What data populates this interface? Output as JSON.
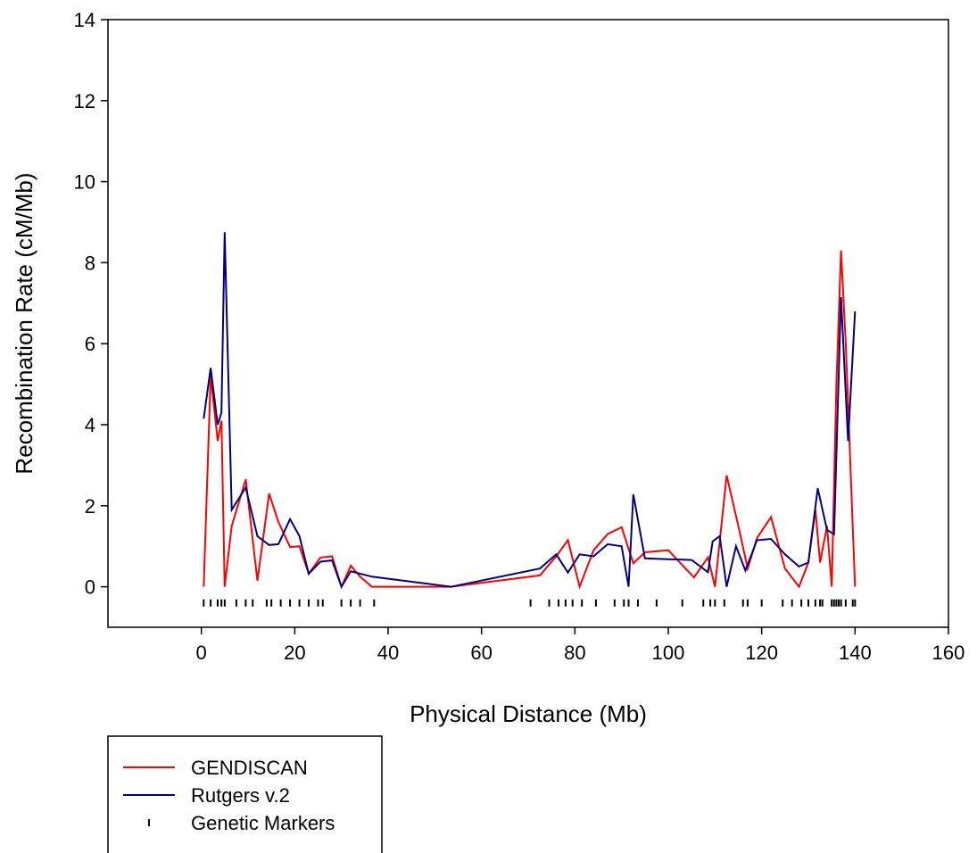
{
  "chart_data": {
    "type": "line",
    "title": "",
    "xlabel": "Physical Distance (Mb)",
    "ylabel": "Recombination Rate (cM/Mb)",
    "xlim": [
      -20,
      160
    ],
    "ylim": [
      -1,
      14
    ],
    "xticks": [
      0,
      20,
      40,
      60,
      80,
      100,
      120,
      140,
      160
    ],
    "yticks": [
      0,
      2,
      4,
      6,
      8,
      10,
      12,
      14
    ],
    "grid": false,
    "legend_position": "bottom-left",
    "series": [
      {
        "name": "GENDISCAN",
        "color": "#ff0000",
        "x": [
          0.5,
          2.0,
          3.5,
          4.3,
          5.0,
          6.5,
          9.5,
          12.0,
          14.5,
          16.5,
          19.0,
          21.0,
          23.0,
          25.5,
          28.0,
          30.0,
          32.0,
          34.0,
          36.5,
          53.5,
          72.5,
          76.0,
          78.5,
          81.0,
          84.0,
          87.0,
          90.0,
          92.5,
          95.0,
          100.0,
          105.5,
          108.5,
          110.0,
          112.5,
          115.0,
          117.0,
          119.0,
          122.0,
          125.0,
          128.0,
          130.0,
          131.5,
          132.5,
          134.0,
          135.0,
          136.0,
          137.0,
          138.0,
          140.0
        ],
        "values": [
          0.0,
          5.2,
          3.6,
          4.1,
          0.0,
          1.5,
          2.65,
          0.15,
          2.3,
          1.6,
          0.98,
          1.0,
          0.32,
          0.72,
          0.75,
          0.0,
          0.52,
          0.25,
          0.0,
          0.0,
          0.28,
          0.75,
          1.15,
          0.0,
          0.9,
          1.3,
          1.47,
          0.58,
          0.85,
          0.9,
          0.23,
          0.73,
          0.0,
          2.75,
          1.5,
          0.45,
          1.2,
          1.72,
          0.45,
          0.0,
          0.6,
          1.9,
          0.6,
          1.5,
          0.0,
          5.0,
          8.3,
          6.0,
          0.0
        ]
      },
      {
        "name": "Rutgers v.2",
        "color": "#000080",
        "x": [
          0.5,
          2.0,
          3.5,
          4.3,
          5.0,
          6.5,
          9.5,
          12.0,
          14.5,
          16.5,
          19.0,
          21.0,
          23.0,
          25.5,
          28.0,
          30.0,
          32.0,
          36.5,
          53.5,
          72.5,
          76.0,
          78.5,
          81.0,
          84.0,
          87.0,
          90.0,
          91.5,
          92.5,
          95.0,
          100.0,
          105.0,
          108.5,
          109.5,
          111.0,
          112.5,
          114.5,
          116.5,
          119.0,
          122.0,
          125.0,
          128.0,
          130.0,
          132.0,
          134.0,
          135.5,
          137.0,
          138.5,
          140.0
        ],
        "values": [
          4.15,
          5.4,
          4.0,
          4.3,
          8.75,
          1.9,
          2.45,
          1.25,
          1.03,
          1.05,
          1.67,
          1.25,
          0.32,
          0.62,
          0.65,
          0.0,
          0.38,
          0.25,
          0.0,
          0.45,
          0.8,
          0.35,
          0.8,
          0.75,
          1.05,
          1.0,
          0.0,
          2.28,
          0.7,
          0.68,
          0.66,
          0.36,
          1.12,
          1.25,
          0.0,
          1.0,
          0.4,
          1.15,
          1.18,
          0.8,
          0.5,
          0.6,
          2.43,
          1.4,
          1.3,
          7.15,
          3.6,
          6.8
        ]
      },
      {
        "name": "Genetic Markers",
        "color": "#000000",
        "marker_y": -0.4,
        "x": [
          0.5,
          2.0,
          3.5,
          4.3,
          5.0,
          7.5,
          9.5,
          11.0,
          14.0,
          15.0,
          17.0,
          19.0,
          21.0,
          23.0,
          25.0,
          26.0,
          30.0,
          32.0,
          34.0,
          37.0,
          70.5,
          74.5,
          76.5,
          78.0,
          79.5,
          81.5,
          84.5,
          88.5,
          90.5,
          91.5,
          93.5,
          97.5,
          103.0,
          107.5,
          109.0,
          110.0,
          112.0,
          116.0,
          117.0,
          120.0,
          124.5,
          126.5,
          128.5,
          130.0,
          131.5,
          132.5,
          133.0,
          135.0,
          135.5,
          136.0,
          136.5,
          137.0,
          138.0,
          139.5,
          140.0
        ]
      }
    ]
  }
}
